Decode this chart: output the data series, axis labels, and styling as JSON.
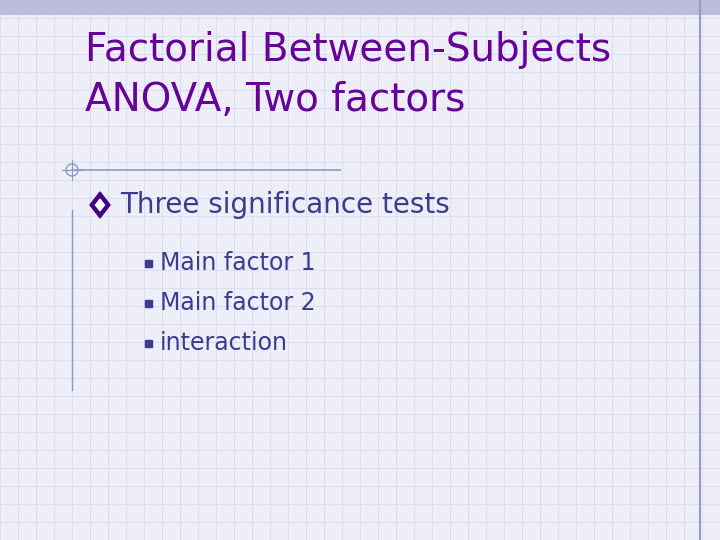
{
  "title_line1": "Factorial Between-Subjects",
  "title_line2": "ANOVA, Two factors",
  "title_color": "#660099",
  "bullet_text": "Three significance tests",
  "bullet_color": "#3B3B8F",
  "subbullets": [
    "Main factor 1",
    "Main factor 2",
    "interaction"
  ],
  "subbullet_color": "#3B3B8F",
  "background_color": "#EEEEF8",
  "grid_color": "#D0D8EE",
  "separator_color": "#8899CC",
  "right_border_color": "#9999BB",
  "top_bar_color": "#BBBBDD",
  "title_fontsize": 28,
  "bullet_fontsize": 20,
  "subbullet_fontsize": 17,
  "diamond_color": "#440088",
  "square_color": "#3B3B8F"
}
